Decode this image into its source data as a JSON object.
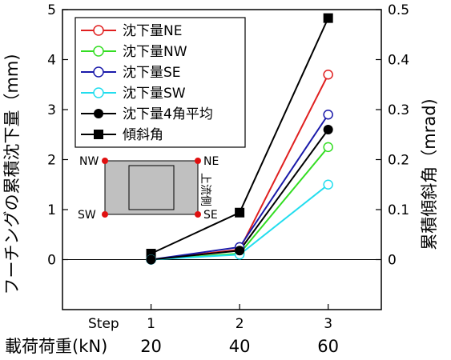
{
  "chart_data": {
    "type": "line",
    "ylabel_left": "フーチングの累積沈下量（mm)",
    "ylabel_right": "累積傾斜角（mrad)",
    "ylim_left": [
      -1,
      5
    ],
    "ylim_right": [
      -0.1,
      0.5
    ],
    "yticks_left": [
      "0",
      "1",
      "2",
      "3",
      "4",
      "5"
    ],
    "yticks_right": [
      "0",
      "0.1",
      "0.2",
      "0.3",
      "0.4",
      "0.5"
    ],
    "x_row1_label": "Step",
    "x_row1_ticks": [
      "1",
      "2",
      "3"
    ],
    "x_row2_label": "載荷荷重(kN)",
    "x_row2_ticks": [
      "20",
      "40",
      "60"
    ],
    "x": [
      1,
      2,
      3
    ],
    "xlim": [
      0,
      3.6
    ],
    "grid": false,
    "legend_position": "top-left",
    "series": [
      {
        "name": "沈下量NE",
        "axis": "left",
        "marker": "open-circle",
        "color": "#e02020",
        "values": [
          0.0,
          0.2,
          3.7
        ]
      },
      {
        "name": "沈下量NW",
        "axis": "left",
        "marker": "open-circle",
        "color": "#33dd22",
        "values": [
          0.0,
          0.12,
          2.25
        ]
      },
      {
        "name": "沈下量SE",
        "axis": "left",
        "marker": "open-circle",
        "color": "#1a1aaa",
        "values": [
          0.0,
          0.25,
          2.9
        ]
      },
      {
        "name": "沈下量SW",
        "axis": "left",
        "marker": "open-circle",
        "color": "#22ddee",
        "values": [
          0.0,
          0.1,
          1.5
        ]
      },
      {
        "name": "沈下量4角平均",
        "axis": "left",
        "marker": "filled-circle",
        "color": "#000000",
        "values": [
          0.0,
          0.18,
          2.6
        ]
      },
      {
        "name": "傾斜角",
        "axis": "right",
        "marker": "filled-square",
        "color": "#000000",
        "values": [
          0.012,
          0.094,
          0.483
        ]
      }
    ],
    "inset": {
      "corners": [
        "NW",
        "NE",
        "SW",
        "SE"
      ],
      "side_label": "上流側"
    }
  }
}
